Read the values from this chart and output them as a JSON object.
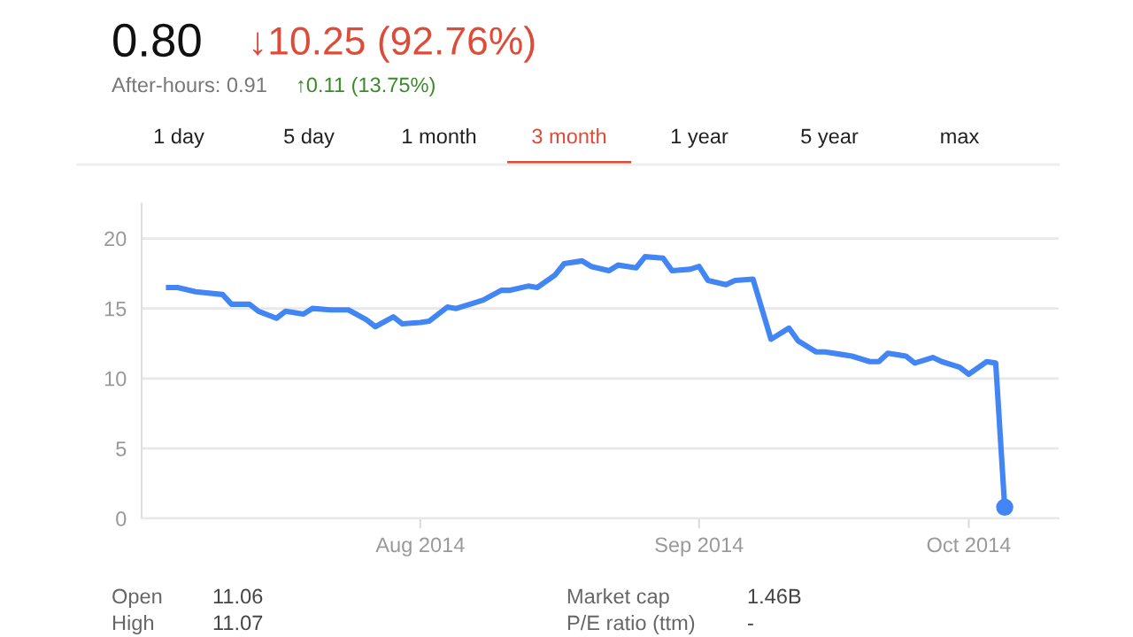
{
  "chart_data": {
    "type": "line",
    "title": "0.80",
    "subtitle": "↓10.25 (92.76%)",
    "annotations": [
      "After-hours: 0.91",
      "↑0.11 (13.75%)",
      "1 day",
      "5 day",
      "1 month",
      "3 month",
      "1 year",
      "5 year",
      "max",
      "Open",
      "11.06",
      "High",
      "11.07",
      "Market cap",
      "1.46B",
      "P/E ratio (ttm)",
      "-"
    ],
    "x": [
      "2014-07-04",
      "2014-07-05",
      "2014-07-07",
      "2014-07-10",
      "2014-07-11",
      "2014-07-13",
      "2014-07-14",
      "2014-07-16",
      "2014-07-17",
      "2014-07-19",
      "2014-07-20",
      "2014-07-22",
      "2014-07-23",
      "2014-07-24",
      "2014-07-26",
      "2014-07-27",
      "2014-07-29",
      "2014-07-30",
      "2014-08-01",
      "2014-08-02",
      "2014-08-04",
      "2014-08-05",
      "2014-08-07",
      "2014-08-08",
      "2014-08-10",
      "2014-08-11",
      "2014-08-13",
      "2014-08-14",
      "2014-08-16",
      "2014-08-17",
      "2014-08-19",
      "2014-08-20",
      "2014-08-22",
      "2014-08-23",
      "2014-08-25",
      "2014-08-26",
      "2014-08-28",
      "2014-08-29",
      "2014-08-31",
      "2014-09-01",
      "2014-09-02",
      "2014-09-04",
      "2014-09-05",
      "2014-09-07",
      "2014-09-09",
      "2014-09-11",
      "2014-09-12",
      "2014-09-14",
      "2014-09-15",
      "2014-09-17",
      "2014-09-18",
      "2014-09-20",
      "2014-09-21",
      "2014-09-22",
      "2014-09-24",
      "2014-09-25",
      "2014-09-27",
      "2014-09-28",
      "2014-09-30",
      "2014-10-01",
      "2014-10-03",
      "2014-10-04",
      "2014-10-05"
    ],
    "series": [
      {
        "color": "#4285f4",
        "values": [
          16.5,
          16.5,
          16.2,
          16.0,
          15.3,
          15.3,
          14.8,
          14.3,
          14.8,
          14.6,
          15.0,
          14.9,
          14.9,
          14.9,
          14.2,
          13.7,
          14.4,
          13.9,
          14.0,
          14.1,
          15.1,
          15.0,
          15.4,
          15.6,
          16.3,
          16.3,
          16.6,
          16.5,
          17.4,
          18.2,
          18.4,
          18.0,
          17.7,
          18.1,
          17.9,
          18.7,
          18.6,
          17.7,
          17.8,
          18.0,
          17.0,
          16.7,
          17.0,
          17.1,
          12.8,
          13.6,
          12.7,
          11.9,
          11.9,
          11.7,
          11.6,
          11.2,
          11.2,
          11.8,
          11.6,
          11.1,
          11.5,
          11.2,
          10.8,
          10.3,
          11.2,
          11.1,
          0.8
        ]
      }
    ],
    "xlim": [
      "2014-07-01",
      "2014-10-11"
    ],
    "ylim": [
      0,
      22.5
    ],
    "yticks": [
      0,
      5,
      10,
      15,
      20
    ],
    "xticks": [
      {
        "value": "2014-08-01",
        "label": "Aug 2014"
      },
      {
        "value": "2014-09-01",
        "label": "Sep 2014"
      },
      {
        "value": "2014-10-01",
        "label": "Oct 2014"
      }
    ],
    "grid": "y",
    "line_style": "solid"
  }
}
